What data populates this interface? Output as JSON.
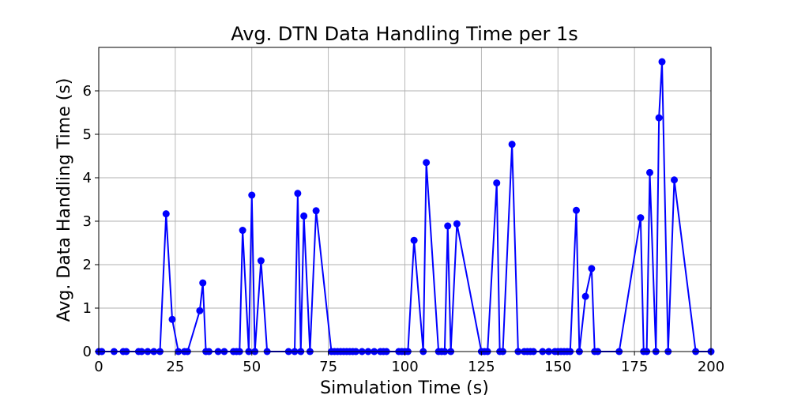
{
  "chart_data": {
    "type": "line",
    "title": "Avg. DTN Data Handling Time per 1s",
    "xlabel": "Simulation Time (s)",
    "ylabel": "Avg. Data Handling Time (s)",
    "xlim": [
      0,
      200
    ],
    "ylim": [
      0,
      7
    ],
    "xticks": [
      0,
      25,
      50,
      75,
      100,
      125,
      150,
      175,
      200
    ],
    "yticks": [
      0,
      1,
      2,
      3,
      4,
      5,
      6
    ],
    "grid": true,
    "legend": "none",
    "series": [
      {
        "color": "#0000ff",
        "marker": "circle",
        "x": [
          0,
          1,
          5,
          8,
          9,
          13,
          14,
          16,
          18,
          20,
          22,
          24,
          26,
          28,
          29,
          33,
          34,
          35,
          36,
          39,
          41,
          44,
          45,
          46,
          47,
          49,
          50,
          51,
          53,
          55,
          62,
          64,
          65,
          66,
          67,
          69,
          71,
          76,
          77,
          78,
          79,
          80,
          81,
          82,
          83,
          84,
          86,
          88,
          90,
          92,
          93,
          94,
          98,
          99,
          100,
          101,
          103,
          106,
          107,
          111,
          112,
          113,
          114,
          115,
          117,
          125,
          126,
          127,
          130,
          131,
          132,
          135,
          137,
          139,
          140,
          141,
          142,
          145,
          147,
          149,
          150,
          151,
          152,
          153,
          154,
          156,
          157,
          159,
          161,
          162,
          163,
          170,
          177,
          178,
          179,
          180,
          182,
          183,
          184,
          186,
          188,
          195,
          200
        ],
        "y": [
          0,
          0,
          0,
          0,
          0,
          0,
          0,
          0,
          0,
          0,
          3.17,
          0.74,
          0,
          0,
          0,
          0.94,
          1.58,
          0,
          0,
          0,
          0,
          0,
          0,
          0,
          2.79,
          0,
          3.6,
          0,
          2.09,
          0,
          0,
          0,
          3.64,
          0,
          3.12,
          0,
          3.24,
          0,
          0,
          0,
          0,
          0,
          0,
          0,
          0,
          0,
          0,
          0,
          0,
          0,
          0,
          0,
          0,
          0,
          0,
          0,
          2.56,
          0,
          4.35,
          0,
          0,
          0,
          2.89,
          0,
          2.94,
          0,
          0,
          0,
          3.88,
          0,
          0,
          4.77,
          0,
          0,
          0,
          0,
          0,
          0,
          0,
          0,
          0,
          0,
          0,
          0,
          0,
          3.25,
          0,
          1.27,
          1.91,
          0,
          0,
          0,
          3.08,
          0,
          0,
          4.12,
          0,
          5.38,
          6.67,
          0,
          3.95,
          0,
          0
        ]
      }
    ]
  }
}
